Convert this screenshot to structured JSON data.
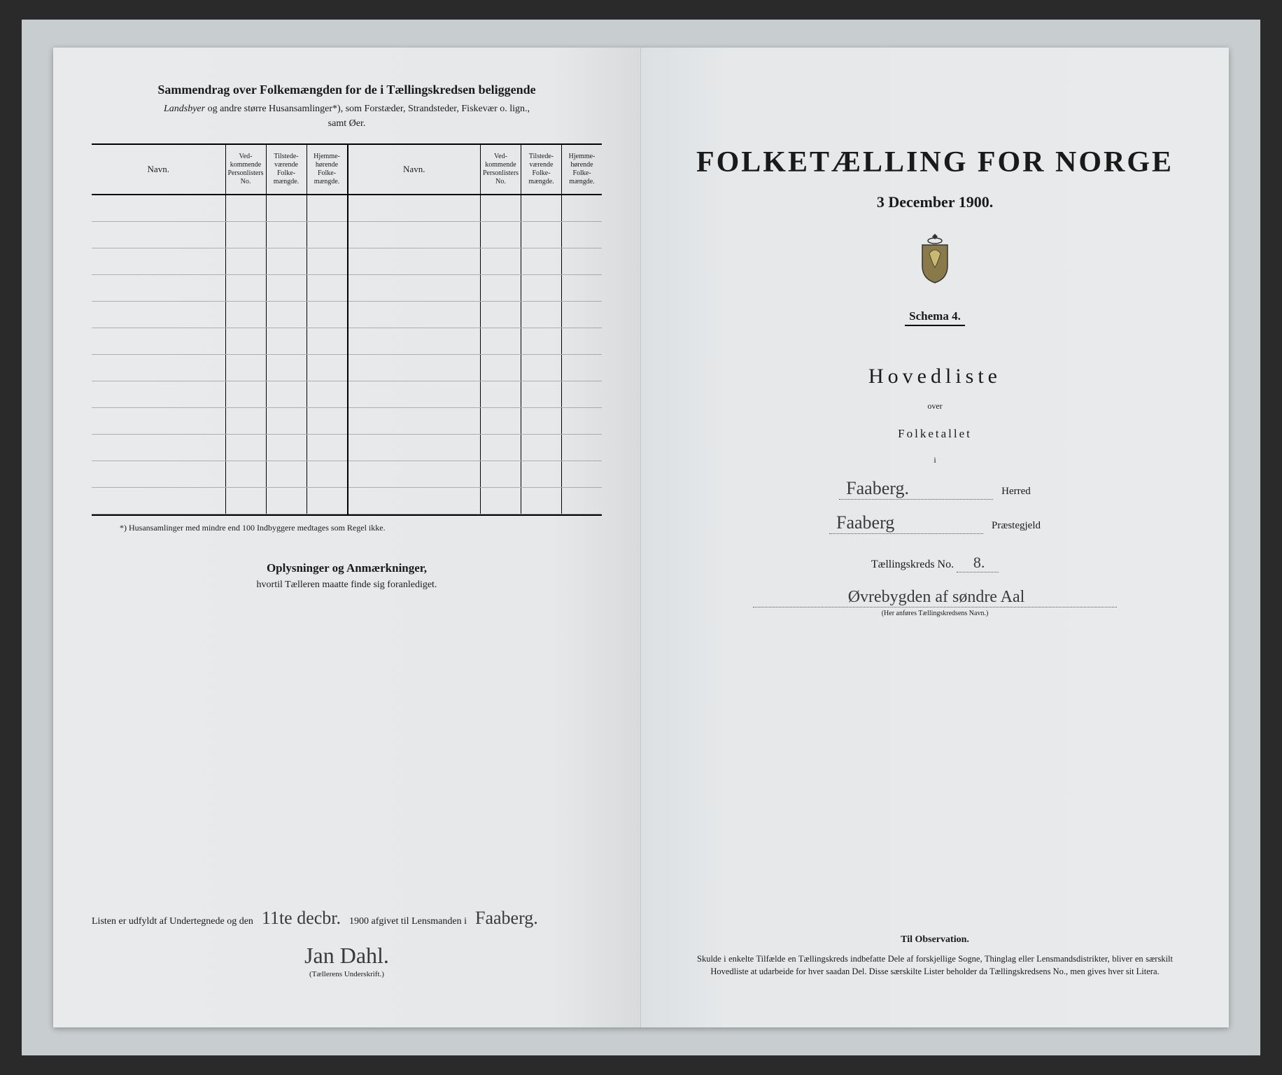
{
  "left": {
    "title": "Sammendrag over Folkemængden for de i Tællingskredsen beliggende",
    "subtitle_italic": "Landsbyer",
    "subtitle_rest": " og andre større Husansamlinger*), som Forstæder, Strandsteder, Fiskevær o. lign.,",
    "subtitle_line2": "samt Øer.",
    "columns": {
      "navn": "Navn.",
      "c1": "Ved-kommende Personlisters No.",
      "c2": "Tilstede-værende Folke-mængde.",
      "c3": "Hjemme-hørende Folke-mængde."
    },
    "row_count": 12,
    "footnote": "*)  Husansamlinger med mindre end 100 Indbyggere medtages som Regel ikke.",
    "oplys_h": "Oplysninger og Anmærkninger,",
    "oplys_s": "hvortil Tælleren maatte finde sig foranlediget.",
    "sig_prefix": "Listen er udfyldt af Undertegnede og den",
    "sig_date": "11te decbr.",
    "sig_mid": "1900 afgivet til Lensmanden i",
    "sig_place": "Faaberg.",
    "sig_name": "Jan Dahl.",
    "sig_caption": "(Tællerens Underskrift.)"
  },
  "right": {
    "title": "FOLKETÆLLING FOR NORGE",
    "date": "3 December 1900.",
    "schema": "Schema 4.",
    "hovedliste": "Hovedliste",
    "over": "over",
    "folketallet": "Folketallet",
    "i": "i",
    "herred_value": "Faaberg.",
    "herred_label": "Herred",
    "praeste_value": "Faaberg",
    "praeste_label": "Præstegjeld",
    "tkreds_label": "Tællingskreds No.",
    "tkreds_value": "8.",
    "kreds_name": "Øvrebygden af søndre Aal",
    "kreds_caption": "(Her anføres Tællingskredsens Navn.)",
    "obs_h": "Til Observation.",
    "obs_t": "Skulde i enkelte Tilfælde en Tællingskreds indbefatte Dele af forskjellige Sogne, Thinglag eller Lensmandsdistrikter, bliver en særskilt Hovedliste at udarbeide for hver saadan Del. Disse særskilte Lister beholder da Tællingskredsens No., men gives hver sit Litera."
  }
}
